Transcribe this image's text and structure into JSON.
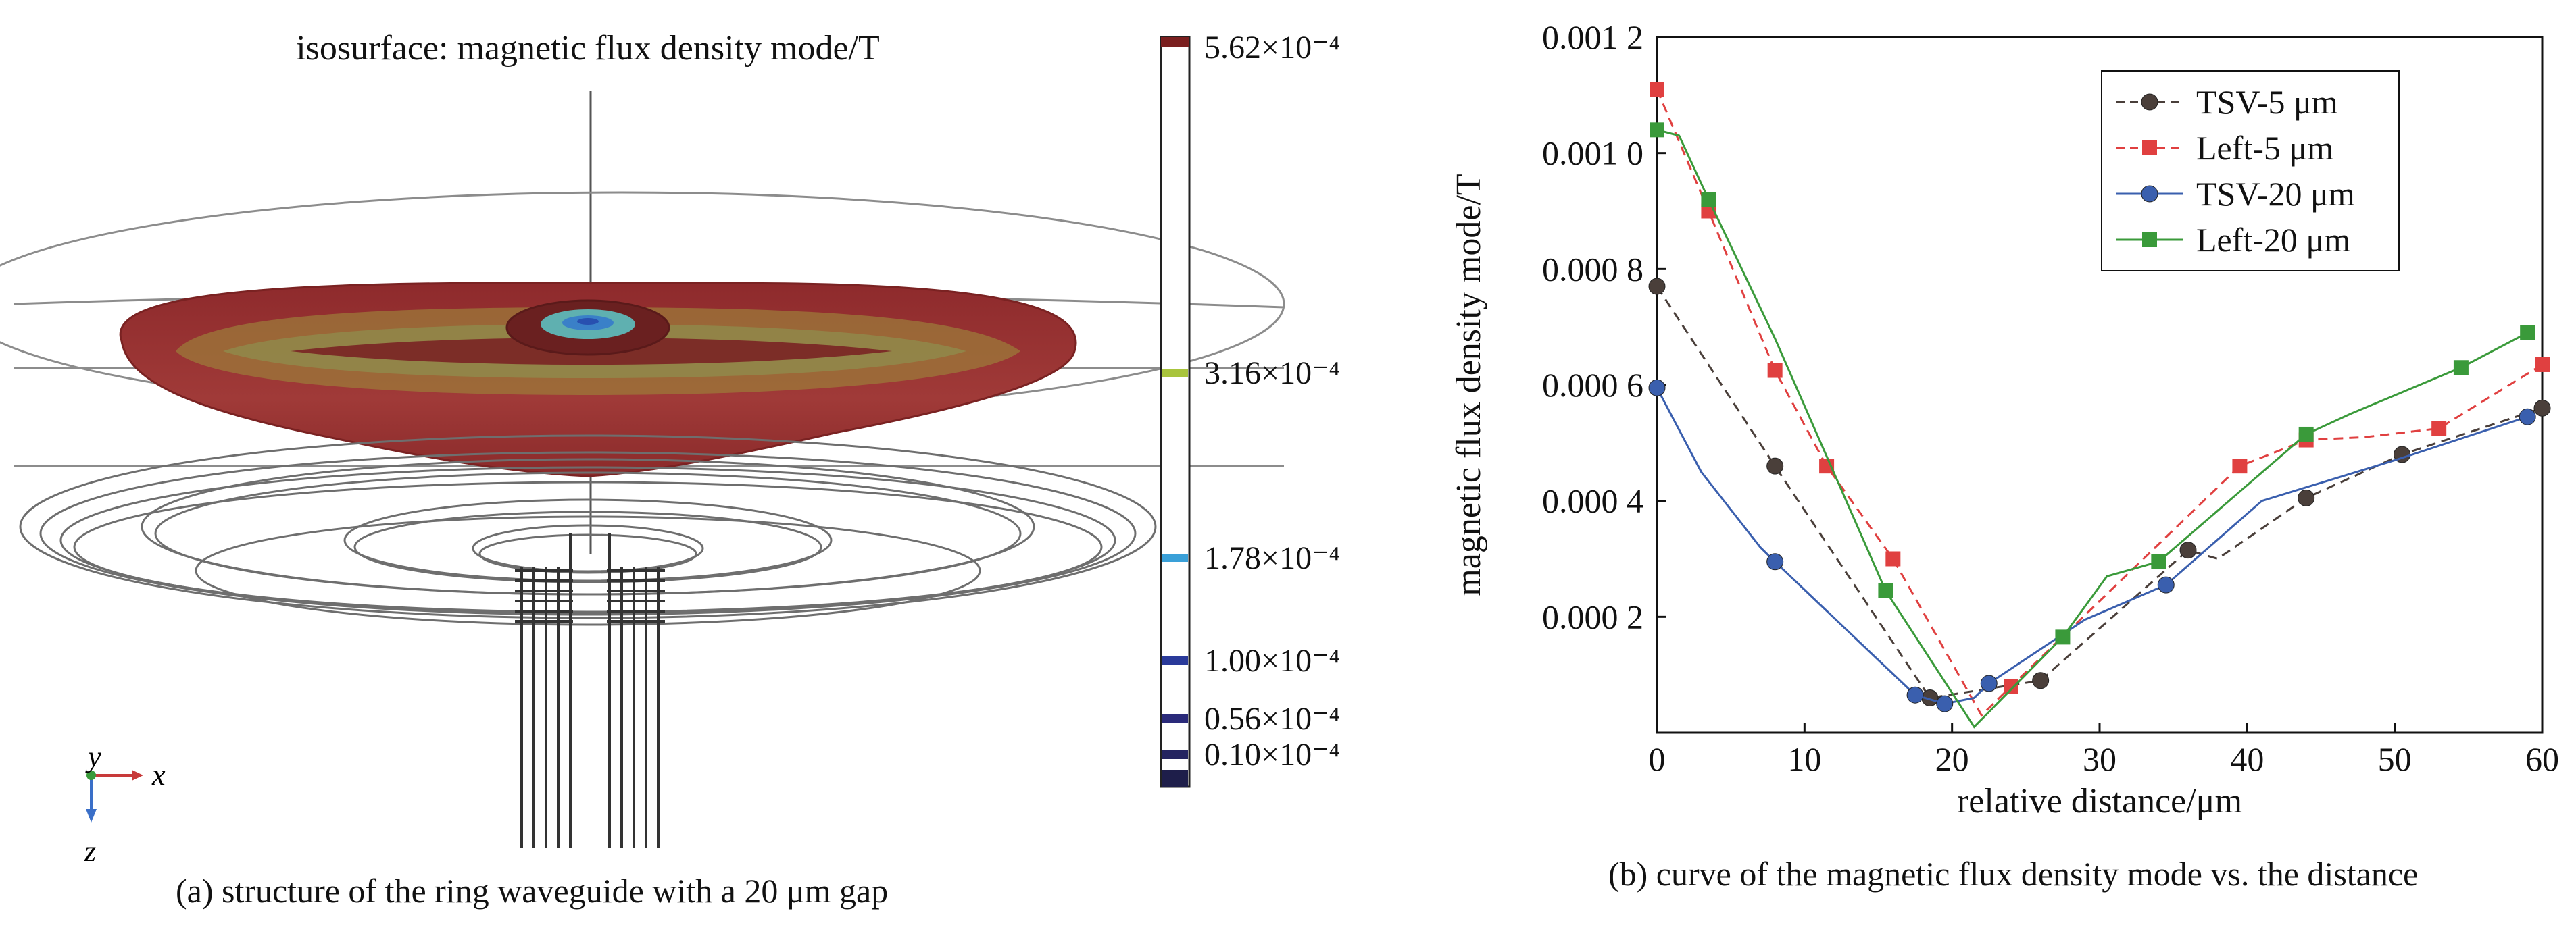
{
  "panel_a": {
    "title": "isosurface: magnetic flux density mode/T",
    "colorbar_labels": [
      "5.62×10⁻⁴",
      "3.16×10⁻⁴",
      "1.78×10⁻⁴",
      "1.00×10⁻⁴",
      "0.56×10⁻⁴",
      "0.10×10⁻⁴"
    ],
    "colorbar_values": [
      5.62,
      3.16,
      1.78,
      1.0,
      0.56,
      0.1
    ],
    "axis_labels": {
      "y": "y",
      "x": "x",
      "z": "z"
    },
    "caption": "(a) structure of the ring waveguide with a 20 μm gap"
  },
  "panel_b": {
    "caption": "(b) curve of the magnetic flux density mode vs. the distance"
  },
  "chart_data": {
    "type": "line",
    "xlabel": "relative distance/μm",
    "ylabel": "magnetic flux density mode/T",
    "xlim": [
      0,
      60
    ],
    "ylim": [
      0,
      0.0012
    ],
    "xticks": [
      0,
      10,
      20,
      30,
      40,
      50,
      60
    ],
    "xtick_labels": [
      "0",
      "10",
      "20",
      "30",
      "40",
      "50",
      "60"
    ],
    "yticks": [
      0.0002,
      0.0004,
      0.0006,
      0.0008,
      0.001,
      0.0012
    ],
    "ytick_labels": [
      "0.000 2",
      "0.000 4",
      "0.000 6",
      "0.000 8",
      "0.001 0",
      "0.001 2"
    ],
    "legend_position": "top-right",
    "grid": false,
    "series": [
      {
        "name": "TSV-5 μm",
        "color": "#4a3f3a",
        "dash": true,
        "marker": "circle",
        "x": [
          0,
          8,
          18.5,
          26,
          36,
          38,
          44,
          50.5,
          60
        ],
        "y": [
          0.00077,
          0.00046,
          6e-05,
          9e-05,
          0.000315,
          0.0003,
          0.000405,
          0.00048,
          0.00056
        ],
        "mx": [
          0,
          8,
          18.5,
          26,
          36,
          44,
          50.5,
          60
        ],
        "my": [
          0.00077,
          0.00046,
          6e-05,
          9e-05,
          0.000315,
          0.000405,
          0.00048,
          0.00056
        ]
      },
      {
        "name": "Left-5 μm",
        "color": "#e04040",
        "dash": true,
        "marker": "square",
        "x": [
          0,
          3.5,
          8,
          11.5,
          16,
          22,
          24,
          39.5,
          44,
          48,
          53,
          60
        ],
        "y": [
          0.00111,
          0.0009,
          0.000625,
          0.00046,
          0.0003,
          3e-05,
          8e-05,
          0.00046,
          0.000505,
          0.00051,
          0.000525,
          0.000635
        ],
        "mx": [
          0,
          3.5,
          8,
          11.5,
          16,
          24,
          39.5,
          44,
          53,
          60
        ],
        "my": [
          0.00111,
          0.0009,
          0.000625,
          0.00046,
          0.0003,
          8e-05,
          0.00046,
          0.000505,
          0.000525,
          0.000635
        ]
      },
      {
        "name": "TSV-20 μm",
        "color": "#3a5fae",
        "dash": false,
        "marker": "circle",
        "x": [
          0,
          3,
          7,
          8,
          17.5,
          19.5,
          21.5,
          22.5,
          29,
          34.5,
          41,
          50,
          59
        ],
        "y": [
          0.000595,
          0.00045,
          0.00032,
          0.000295,
          6.5e-05,
          5e-05,
          6e-05,
          8.5e-05,
          0.000195,
          0.000255,
          0.0004,
          0.00047,
          0.000545
        ],
        "mx": [
          0,
          8,
          17.5,
          19.5,
          22.5,
          34.5,
          59
        ],
        "my": [
          0.000595,
          0.000295,
          6.5e-05,
          5e-05,
          8.5e-05,
          0.000255,
          0.000545
        ]
      },
      {
        "name": "Left-20 μm",
        "color": "#3a9a3a",
        "dash": false,
        "marker": "square",
        "x": [
          0,
          1.5,
          3.5,
          8,
          15.5,
          21.5,
          27.5,
          30.5,
          34,
          44,
          47,
          54.5,
          59
        ],
        "y": [
          0.00104,
          0.00103,
          0.00092,
          0.00068,
          0.000245,
          1e-05,
          0.000165,
          0.00027,
          0.000295,
          0.000515,
          0.00055,
          0.00063,
          0.00069
        ],
        "mx": [
          0,
          3.5,
          15.5,
          27.5,
          34,
          44,
          54.5,
          59
        ],
        "my": [
          0.00104,
          0.00092,
          0.000245,
          0.000165,
          0.000295,
          0.000515,
          0.00063,
          0.00069
        ]
      }
    ]
  }
}
